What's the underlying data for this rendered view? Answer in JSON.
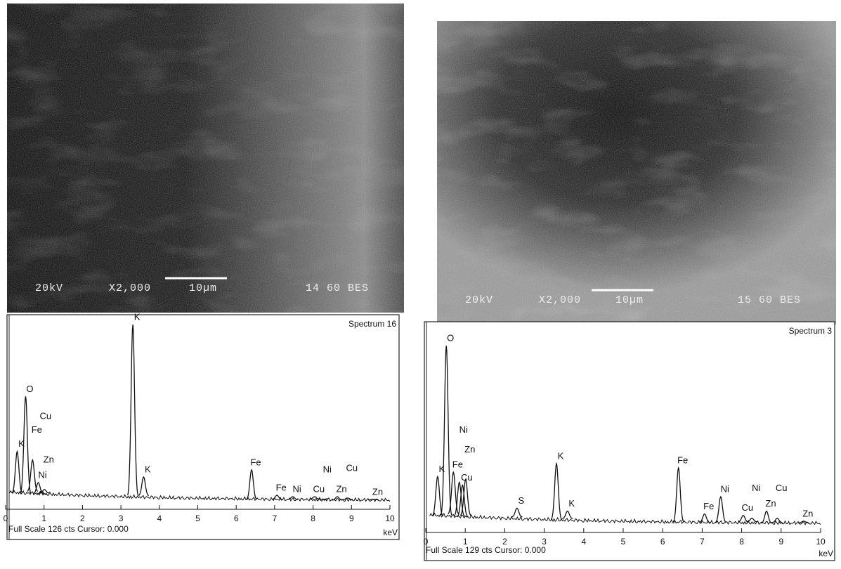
{
  "panels": [
    {
      "sem": {
        "voltage": "20kV",
        "magnification": "X2,000",
        "scale_bar": "10µm",
        "code": "14 60 BES"
      },
      "spectrum": {
        "type": "spectrum",
        "title": "Spectrum 16",
        "x_label": "keV",
        "footer": "Full Scale 126 cts Cursor: 0.000",
        "xlim": [
          0,
          10
        ],
        "ylim": [
          0,
          126
        ],
        "xticks": [
          0,
          1,
          2,
          3,
          4,
          5,
          6,
          7,
          8,
          9,
          10
        ],
        "peaks": [
          {
            "label": "K",
            "kev": 0.3,
            "counts": 36
          },
          {
            "label": "O",
            "kev": 0.52,
            "counts": 75
          },
          {
            "label": "Fe",
            "kev": 0.7,
            "counts": 30
          },
          {
            "label": "Ni",
            "kev": 0.85,
            "counts": 14
          },
          {
            "label": "Zn",
            "kev": 1.01,
            "counts": 9
          },
          {
            "label": "Cu",
            "kev": 0.93,
            "counts": 8
          },
          {
            "label": "K",
            "kev": 3.31,
            "counts": 126
          },
          {
            "label": "K",
            "kev": 3.59,
            "counts": 18
          },
          {
            "label": "Fe",
            "kev": 6.4,
            "counts": 23
          },
          {
            "label": "Fe",
            "kev": 7.06,
            "counts": 5
          },
          {
            "label": "Ni",
            "kev": 7.47,
            "counts": 4
          },
          {
            "label": "Cu",
            "kev": 8.04,
            "counts": 4
          },
          {
            "label": "Ni",
            "kev": 8.26,
            "counts": 2
          },
          {
            "label": "Zn",
            "kev": 8.63,
            "counts": 4
          },
          {
            "label": "Cu",
            "kev": 8.9,
            "counts": 3
          },
          {
            "label": "Zn",
            "kev": 9.57,
            "counts": 2
          }
        ]
      }
    },
    {
      "sem": {
        "voltage": "20kV",
        "magnification": "X2,000",
        "scale_bar": "10µm",
        "code": "15 60 BES"
      },
      "spectrum": {
        "type": "spectrum",
        "title": "Spectrum 3",
        "x_label": "keV",
        "footer": "Full Scale 129 cts Cursor: 0.000",
        "xlim": [
          0,
          10
        ],
        "ylim": [
          0,
          129
        ],
        "xticks": [
          0,
          1,
          2,
          3,
          4,
          5,
          6,
          7,
          8,
          9,
          10
        ],
        "peaks": [
          {
            "label": "K",
            "kev": 0.3,
            "counts": 34
          },
          {
            "label": "O",
            "kev": 0.52,
            "counts": 125
          },
          {
            "label": "Fe",
            "kev": 0.7,
            "counts": 37
          },
          {
            "label": "Zn",
            "kev": 1.01,
            "counts": 32
          },
          {
            "label": "Cu",
            "kev": 0.93,
            "counts": 28
          },
          {
            "label": "Ni",
            "kev": 0.85,
            "counts": 30
          },
          {
            "label": "S",
            "kev": 2.31,
            "counts": 12
          },
          {
            "label": "K",
            "kev": 3.31,
            "counts": 43
          },
          {
            "label": "K",
            "kev": 3.59,
            "counts": 10
          },
          {
            "label": "Fe",
            "kev": 6.4,
            "counts": 40
          },
          {
            "label": "Fe",
            "kev": 7.06,
            "counts": 8
          },
          {
            "label": "Ni",
            "kev": 7.47,
            "counts": 20
          },
          {
            "label": "Cu",
            "kev": 8.04,
            "counts": 7
          },
          {
            "label": "Ni",
            "kev": 8.26,
            "counts": 5
          },
          {
            "label": "Zn",
            "kev": 8.63,
            "counts": 10
          },
          {
            "label": "Cu",
            "kev": 8.9,
            "counts": 5
          },
          {
            "label": "Zn",
            "kev": 9.57,
            "counts": 3
          }
        ]
      }
    }
  ]
}
